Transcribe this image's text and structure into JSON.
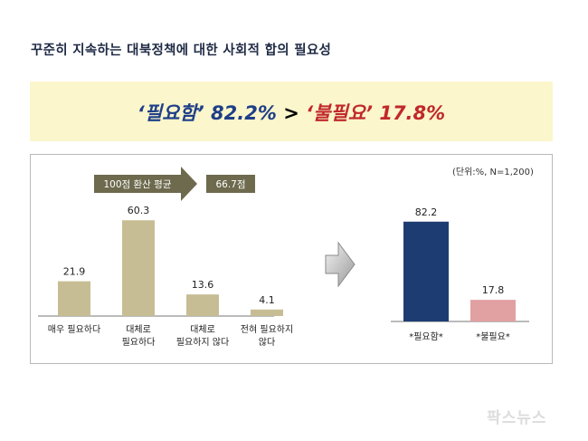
{
  "title": "꾸준히 지속하는 대북정책에 대한 사회적 합의 필요성",
  "headline": {
    "part1": "‘필요함’ 82.2%",
    "separator": " > ",
    "part2": "‘불필요’ 17.8%"
  },
  "unit_note": "(단위:%, N=1,200)",
  "average_badge": {
    "label": "100점 환산 평균",
    "value": "66.7점"
  },
  "watermark": "팍스뉴스",
  "colors": {
    "olive_bar": "#c7bd94",
    "navy_bar": "#1d3c72",
    "pink_bar": "#e1a0a2",
    "badge_arrow": "#6d6a4e",
    "headline_blue": "#1f3f88",
    "headline_red": "#c0292b"
  },
  "chart_data": [
    {
      "type": "bar",
      "categories": [
        [
          "매우 필요하다"
        ],
        [
          "대체로",
          "필요하다"
        ],
        [
          "대체로",
          "필요하지 않다"
        ],
        [
          "전혀 필요하지",
          "않다"
        ]
      ],
      "values": [
        21.9,
        60.3,
        13.6,
        4.1
      ],
      "value_labels": [
        "21.9",
        "60.3",
        "13.6",
        "4.1"
      ],
      "ylim": [
        0,
        65
      ]
    },
    {
      "type": "bar",
      "categories": [
        "*필요함*",
        "*불필요*"
      ],
      "values": [
        82.2,
        17.8
      ],
      "value_labels": [
        "82.2",
        "17.8"
      ],
      "ylim": [
        0,
        88
      ]
    }
  ]
}
